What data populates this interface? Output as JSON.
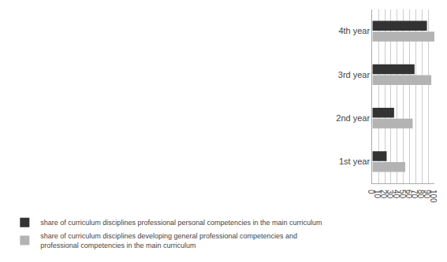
{
  "chart_data": {
    "type": "bar",
    "orientation": "horizontal",
    "categories": [
      "1st year",
      "2nd year",
      "3rd year",
      "4th year"
    ],
    "series": [
      {
        "name": "share of curriculum disciplines professional personal competencies in the main curriculum",
        "color": "#333333",
        "values": [
          23,
          35,
          68,
          88
        ]
      },
      {
        "name": "share of curriculum disciplines developing general professional competencies and\nprofessional competencies in the main curriculum",
        "color": "#b3b3b3",
        "values": [
          53,
          65,
          95,
          100
        ]
      }
    ],
    "xlim": [
      0,
      100
    ],
    "xticks": [
      0,
      10,
      20,
      30,
      40,
      50,
      60,
      70,
      80,
      90,
      100
    ],
    "grid": true,
    "legend": "bottom"
  }
}
